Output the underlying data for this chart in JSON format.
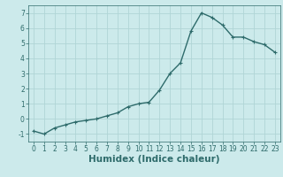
{
  "x": [
    0,
    1,
    2,
    3,
    4,
    5,
    6,
    7,
    8,
    9,
    10,
    11,
    12,
    13,
    14,
    15,
    16,
    17,
    18,
    19,
    20,
    21,
    22,
    23
  ],
  "y": [
    -0.8,
    -1.0,
    -0.6,
    -0.4,
    -0.2,
    -0.1,
    0.0,
    0.2,
    0.4,
    0.8,
    1.0,
    1.1,
    1.9,
    3.0,
    3.7,
    5.8,
    7.0,
    6.7,
    6.2,
    5.4,
    5.4,
    5.1,
    4.9,
    4.4
  ],
  "line_color": "#2e6b6b",
  "marker": "+",
  "marker_size": 3,
  "marker_linewidth": 0.8,
  "bg_color": "#cceaeb",
  "grid_color": "#b0d5d6",
  "xlabel": "Humidex (Indice chaleur)",
  "ylim": [
    -1.5,
    7.5
  ],
  "xlim": [
    -0.5,
    23.5
  ],
  "yticks": [
    -1,
    0,
    1,
    2,
    3,
    4,
    5,
    6,
    7
  ],
  "xticks": [
    0,
    1,
    2,
    3,
    4,
    5,
    6,
    7,
    8,
    9,
    10,
    11,
    12,
    13,
    14,
    15,
    16,
    17,
    18,
    19,
    20,
    21,
    22,
    23
  ],
  "tick_fontsize": 5.5,
  "xlabel_fontsize": 7.5,
  "line_width": 1.0
}
